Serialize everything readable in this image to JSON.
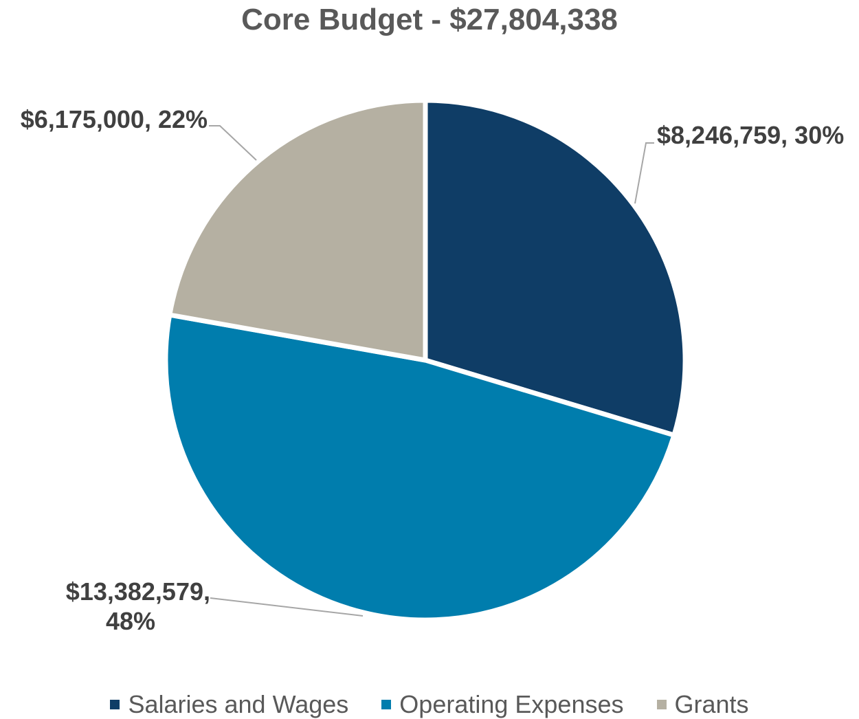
{
  "chart_data": {
    "type": "pie",
    "title": "Core Budget - $27,804,338",
    "legend_position": "bottom",
    "slices": [
      {
        "name": "Salaries and Wages",
        "value": 8246759,
        "percent": 30,
        "color": "#0F3D66",
        "label_line1": "$8,246,759, 30%",
        "label_line2": ""
      },
      {
        "name": "Operating Expenses",
        "value": 13382579,
        "percent": 48,
        "color": "#007DAD",
        "label_line1": "$13,382,579,",
        "label_line2": "48%"
      },
      {
        "name": "Grants",
        "value": 6175000,
        "percent": 22,
        "color": "#B5B0A2",
        "label_line1": "$6,175,000, 22%",
        "label_line2": ""
      }
    ]
  }
}
